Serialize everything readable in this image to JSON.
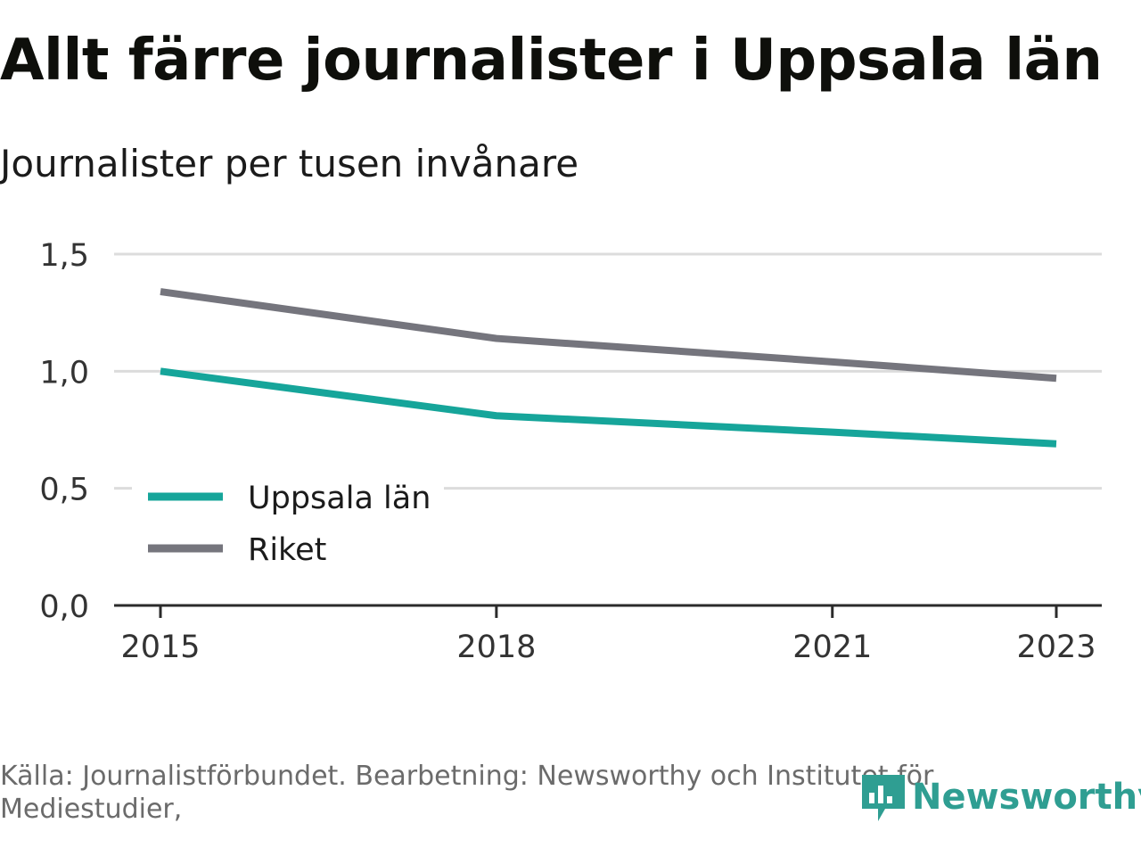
{
  "header": {
    "title": "Allt färre journalister i Uppsala län",
    "subtitle": "Journalister per tusen invånare"
  },
  "footer": {
    "source": "Källa: Journalistförbundet. Bearbetning: Newsworthy och Institutet för Mediestudier,",
    "logo_text": "Newsworthy",
    "logo_icon": "newsworthy-logo-icon"
  },
  "colors": {
    "uppsala": "#16a59a",
    "riket": "#75757d",
    "grid": "#dcdcdc",
    "axis": "#2b2b2b"
  },
  "chart_data": {
    "type": "line",
    "title": "Allt färre journalister i Uppsala län",
    "subtitle": "Journalister per tusen invånare",
    "x": [
      2015,
      2018,
      2021,
      2023
    ],
    "x_ticks": [
      "2015",
      "2018",
      "2021",
      "2023"
    ],
    "ylim": [
      0,
      1.5
    ],
    "y_ticks": [
      "0,0",
      "0,5",
      "1,0",
      "1,5"
    ],
    "grid": true,
    "legend_position": "bottom-left",
    "series": [
      {
        "name": "Uppsala län",
        "color": "#16a59a",
        "values": [
          1.0,
          0.81,
          0.74,
          0.69
        ]
      },
      {
        "name": "Riket",
        "color": "#75757d",
        "values": [
          1.34,
          1.14,
          1.04,
          0.97
        ]
      }
    ]
  }
}
